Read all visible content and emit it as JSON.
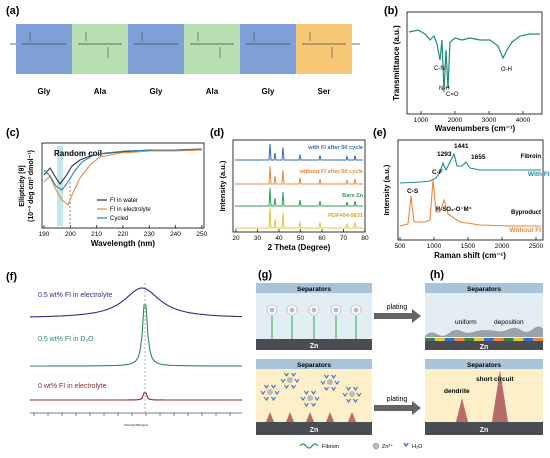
{
  "panels": {
    "a": {
      "label": "(a)",
      "residues": [
        {
          "name": "Gly",
          "bg": "#7fa0d6"
        },
        {
          "name": "Ala",
          "bg": "#b9e0b3"
        },
        {
          "name": "Gly",
          "bg": "#7fa0d6"
        },
        {
          "name": "Ala",
          "bg": "#b9e0b3"
        },
        {
          "name": "Gly",
          "bg": "#7fa0d6"
        },
        {
          "name": "Ser",
          "bg": "#f7c977"
        }
      ]
    },
    "b": {
      "label": "(b)",
      "xlabel": "Wavenumbers (cm⁻¹)",
      "ylabel": "Transmittance (a.u.)",
      "xticks": [
        "1000",
        "2000",
        "3000",
        "4000"
      ],
      "peaks": [
        "C-N",
        "N-H",
        "C=O",
        "O-H"
      ],
      "color": "#1f8a7f"
    },
    "c": {
      "label": "(c)",
      "title": "Random coil",
      "xlabel": "Wavelength (nm)",
      "ylabel_1": "Ellipticity [θ]",
      "ylabel_2": "(10⁻³ deg cm² dmol⁻¹)",
      "xticks": [
        "190",
        "200",
        "210",
        "220",
        "230",
        "240",
        "250"
      ],
      "legend": [
        "FI in water",
        "FI in electrolyte",
        "Cycled"
      ],
      "colors": [
        "#333333",
        "#e88a3b",
        "#2f7fb0"
      ]
    },
    "d": {
      "label": "(d)",
      "xlabel": "2 Theta (Degree)",
      "ylabel": "Intensity (a.u.)",
      "xticks": [
        "20",
        "30",
        "40",
        "50",
        "60",
        "70",
        "80"
      ],
      "traces": [
        {
          "name": "with FI after 50 cycle",
          "color": "#2f6db5"
        },
        {
          "name": "without FI after 50 cycle",
          "color": "#e88a3b"
        },
        {
          "name": "Bare Zn",
          "color": "#2e9e57"
        },
        {
          "name": "PDF#04-0831",
          "color": "#e8c43b"
        }
      ]
    },
    "e": {
      "label": "(e)",
      "xlabel": "Raman shift (cm⁻¹)",
      "ylabel": "Intensity (a.u.)",
      "xticks": [
        "500",
        "1000",
        "1500",
        "2000",
        "2500"
      ],
      "peaks": [
        "1293",
        "1441",
        "1655",
        "C-F",
        "C-S",
        "R-SO₃-O⁻M⁺"
      ],
      "trace_labels": [
        "Fibroin",
        "With FI",
        "Byproduct",
        "Without FI"
      ],
      "colors": [
        "#1f8a9f",
        "#e88a3b"
      ]
    },
    "f": {
      "label": "(f)",
      "traces": [
        "0.5 wt% FI in electrolyte",
        "0.5 wt% FI in D₂O",
        "0 wt% FI in electrolyte"
      ],
      "colors": [
        "#2d2f8f",
        "#2e8b57",
        "#8b2d2d"
      ],
      "xaxis": "Chemical Shift (ppm)"
    },
    "g": {
      "label": "(g)",
      "separators": "Separators",
      "plating": "plating",
      "zn": "Zn",
      "legend": [
        "Fibroin",
        "Zn²⁺",
        "H₂O"
      ]
    },
    "h": {
      "label": "(h)",
      "separators": "Separators",
      "uniform": "uniform",
      "deposition": "deposition",
      "dendrite": "dendrite",
      "short_circuit": "short circuit",
      "zn": "Zn"
    }
  }
}
